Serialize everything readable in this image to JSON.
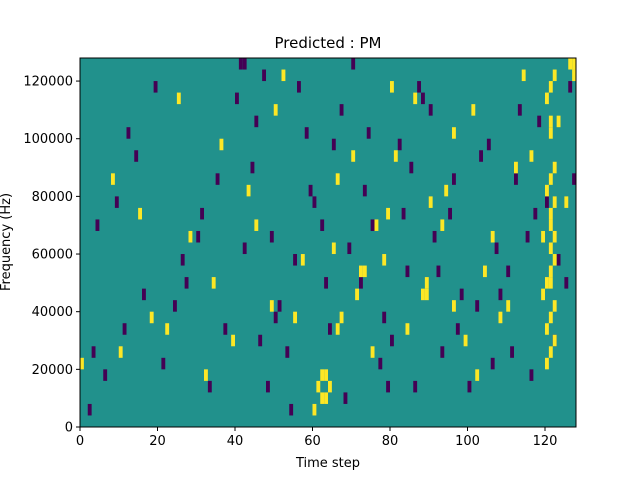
{
  "chart_data": {
    "type": "heatmap",
    "title": "Predicted : PM",
    "xlabel": "Time step",
    "ylabel": "Frequency (Hz)",
    "xlim": [
      0,
      128
    ],
    "ylim": [
      0,
      128000
    ],
    "x_ticks": [
      0,
      20,
      40,
      60,
      80,
      100,
      120
    ],
    "y_ticks": [
      0,
      20000,
      40000,
      60000,
      80000,
      100000,
      120000
    ],
    "grid": false,
    "legend": "none",
    "colors": {
      "background": "#21918c",
      "low": "#440154",
      "high": "#fde725"
    },
    "cells": {
      "column_width": 1,
      "row_height": 4000,
      "low": [
        [
          2,
          1
        ],
        [
          6,
          4
        ],
        [
          11,
          8
        ],
        [
          16,
          11
        ],
        [
          21,
          5
        ],
        [
          27,
          12
        ],
        [
          30,
          16
        ],
        [
          35,
          21
        ],
        [
          40,
          28
        ],
        [
          45,
          26
        ],
        [
          50,
          9
        ],
        [
          55,
          14
        ],
        [
          60,
          19
        ],
        [
          65,
          24
        ],
        [
          70,
          31
        ],
        [
          75,
          17
        ],
        [
          80,
          7
        ],
        [
          85,
          22
        ],
        [
          88,
          28
        ],
        [
          92,
          13
        ],
        [
          95,
          18
        ],
        [
          100,
          3
        ],
        [
          105,
          24
        ],
        [
          108,
          11
        ],
        [
          112,
          21
        ],
        [
          115,
          16
        ],
        [
          118,
          26
        ],
        [
          122,
          7
        ],
        [
          125,
          12
        ],
        [
          127,
          21
        ],
        [
          3,
          6
        ],
        [
          9,
          19
        ],
        [
          14,
          23
        ],
        [
          24,
          10
        ],
        [
          33,
          3
        ],
        [
          42,
          15
        ],
        [
          47,
          30
        ],
        [
          53,
          6
        ],
        [
          58,
          25
        ],
        [
          63,
          12
        ],
        [
          68,
          2
        ],
        [
          73,
          20
        ],
        [
          78,
          9
        ],
        [
          83,
          18
        ],
        [
          90,
          27
        ],
        [
          97,
          8
        ],
        [
          103,
          23
        ],
        [
          110,
          13
        ],
        [
          116,
          4
        ],
        [
          120,
          19
        ],
        [
          42,
          31
        ],
        [
          41,
          31
        ],
        [
          46,
          7
        ],
        [
          48,
          3
        ],
        [
          51,
          10
        ],
        [
          56,
          29
        ],
        [
          62,
          17
        ],
        [
          67,
          27
        ],
        [
          72,
          12
        ],
        [
          77,
          5
        ],
        [
          82,
          24
        ],
        [
          86,
          3
        ],
        [
          91,
          16
        ],
        [
          96,
          21
        ],
        [
          102,
          10
        ],
        [
          106,
          5
        ],
        [
          113,
          27
        ],
        [
          117,
          18
        ],
        [
          123,
          14
        ],
        [
          126,
          29
        ],
        [
          4,
          17
        ],
        [
          12,
          25
        ],
        [
          19,
          29
        ],
        [
          26,
          14
        ],
        [
          31,
          18
        ],
        [
          37,
          8
        ],
        [
          44,
          22
        ],
        [
          49,
          16
        ],
        [
          54,
          1
        ],
        [
          59,
          20
        ],
        [
          64,
          8
        ],
        [
          69,
          15
        ],
        [
          74,
          25
        ],
        [
          79,
          3
        ],
        [
          84,
          13
        ],
        [
          87,
          29
        ],
        [
          93,
          6
        ],
        [
          98,
          11
        ],
        [
          107,
          15
        ],
        [
          111,
          6
        ]
      ],
      "high": [
        [
          0,
          5
        ],
        [
          10,
          6
        ],
        [
          18,
          9
        ],
        [
          22,
          8
        ],
        [
          28,
          16
        ],
        [
          34,
          12
        ],
        [
          39,
          7
        ],
        [
          43,
          20
        ],
        [
          49,
          10
        ],
        [
          52,
          30
        ],
        [
          57,
          14
        ],
        [
          61,
          3
        ],
        [
          66,
          21
        ],
        [
          71,
          11
        ],
        [
          76,
          17
        ],
        [
          81,
          23
        ],
        [
          86,
          28
        ],
        [
          89,
          12
        ],
        [
          94,
          20
        ],
        [
          99,
          7
        ],
        [
          101,
          27
        ],
        [
          104,
          13
        ],
        [
          108,
          9
        ],
        [
          112,
          22
        ],
        [
          114,
          30
        ],
        [
          119,
          16
        ],
        [
          121,
          12
        ],
        [
          123,
          26
        ],
        [
          125,
          19
        ],
        [
          127,
          31
        ],
        [
          8,
          21
        ],
        [
          15,
          18
        ],
        [
          25,
          28
        ],
        [
          32,
          4
        ],
        [
          36,
          24
        ],
        [
          45,
          17
        ],
        [
          50,
          27
        ],
        [
          55,
          9
        ],
        [
          60,
          1
        ],
        [
          65,
          15
        ],
        [
          70,
          23
        ],
        [
          75,
          6
        ],
        [
          80,
          29
        ],
        [
          84,
          8
        ],
        [
          90,
          19
        ],
        [
          96,
          25
        ],
        [
          102,
          4
        ],
        [
          106,
          16
        ],
        [
          110,
          10
        ],
        [
          116,
          23
        ],
        [
          62,
          2
        ],
        [
          63,
          2
        ],
        [
          64,
          3
        ],
        [
          62,
          4
        ],
        [
          63,
          4
        ],
        [
          66,
          8
        ],
        [
          67,
          9
        ],
        [
          72,
          13
        ],
        [
          73,
          13
        ],
        [
          78,
          14
        ],
        [
          79,
          18
        ],
        [
          88,
          11
        ],
        [
          89,
          11
        ],
        [
          93,
          17
        ],
        [
          96,
          10
        ],
        [
          120,
          5
        ],
        [
          121,
          6
        ],
        [
          122,
          7
        ],
        [
          120,
          8
        ],
        [
          121,
          9
        ],
        [
          122,
          10
        ],
        [
          119,
          11
        ],
        [
          120,
          12
        ],
        [
          121,
          13
        ],
        [
          122,
          14
        ],
        [
          121,
          15
        ],
        [
          122,
          16
        ],
        [
          121,
          17
        ],
        [
          121,
          18
        ],
        [
          122,
          19
        ],
        [
          120,
          20
        ],
        [
          121,
          21
        ],
        [
          122,
          22
        ],
        [
          121,
          25
        ],
        [
          121,
          26
        ],
        [
          120,
          28
        ],
        [
          121,
          29
        ],
        [
          122,
          30
        ],
        [
          126,
          31
        ],
        [
          127,
          30
        ]
      ]
    }
  }
}
